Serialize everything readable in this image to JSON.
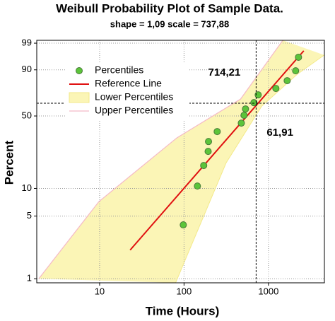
{
  "chart_data": {
    "type": "probability",
    "title": "Weibull Probability Plot of Sample Data.",
    "subtitle": "shape = 1,09  scale = 737,88",
    "x_label": "Time (Hours)",
    "y_label": "Percent",
    "xscale": "log",
    "yscale": "weibull",
    "xlim": [
      1.8,
      4600
    ],
    "ylim": [
      0.9,
      99.3
    ],
    "xticks": [
      10,
      100,
      1000
    ],
    "yticks": [
      1,
      5,
      10,
      50,
      90,
      99
    ],
    "grid": true,
    "legend": "upper-left",
    "series": [
      {
        "name": "Percentiles",
        "kind": "points",
        "color": "#5cc43a",
        "x": [
          98,
          144,
          171,
          193,
          195,
          247,
          477,
          514,
          535,
          673,
          756,
          1225,
          1667,
          2100,
          2270
        ],
        "values": [
          4.0,
          10.6,
          17.4,
          24.1,
          30.0,
          37.0,
          43.8,
          50.6,
          56.5,
          62.5,
          69.9,
          75.8,
          82.4,
          89.4,
          95.9
        ]
      },
      {
        "name": "Reference Line",
        "kind": "line",
        "color": "#e01010",
        "x": [
          23,
          2620
        ],
        "values": [
          2.1,
          97.7
        ]
      },
      {
        "name": "Lower Percentiles",
        "kind": "band",
        "color": "#fbf5b6",
        "x": [
          79.4,
          316,
          831,
          2190,
          4580
        ],
        "values": [
          0.9,
          18.6,
          59.1,
          87.1,
          96.6
        ]
      },
      {
        "name": "Upper Percentiles",
        "kind": "edge",
        "color": "#f4b9c6",
        "x": [
          1.9,
          9.8,
          82,
          467,
          1480
        ],
        "values": [
          1.0,
          7.2,
          32.4,
          65.9,
          99.3
        ]
      }
    ],
    "crosshair": {
      "x": {
        "value": 714.21,
        "label": "714,21"
      },
      "y": {
        "value": 61.91,
        "label": "61,91"
      }
    }
  }
}
